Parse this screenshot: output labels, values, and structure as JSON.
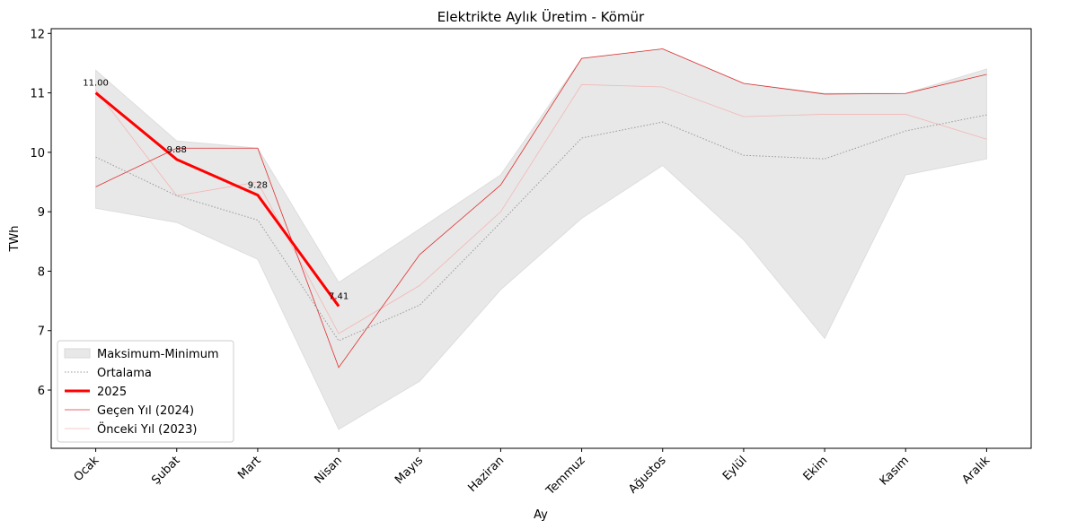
{
  "chart_data": {
    "type": "line",
    "title": "Elektrikte Aylık Üretim - Kömür",
    "xlabel": "Ay",
    "ylabel": "TWh",
    "categories": [
      "Ocak",
      "Şubat",
      "Mart",
      "Nisan",
      "Mayıs",
      "Haziran",
      "Temmuz",
      "Ağustos",
      "Eylül",
      "Ekim",
      "Kasım",
      "Aralık"
    ],
    "band": {
      "name": "Maksimum-Minimum",
      "color": "#e8e8e8",
      "upper": [
        11.38,
        10.19,
        10.07,
        7.81,
        8.71,
        9.62,
        11.58,
        11.74,
        11.16,
        10.99,
        10.99,
        11.4
      ],
      "lower": [
        9.06,
        8.82,
        8.2,
        5.34,
        6.15,
        7.69,
        8.89,
        9.78,
        8.53,
        6.87,
        9.62,
        9.89
      ]
    },
    "series": [
      {
        "name": "Ortalama",
        "color": "#999999",
        "width": 1,
        "dash": "1.5 2",
        "values": [
          9.92,
          9.27,
          8.86,
          6.83,
          7.43,
          8.82,
          10.24,
          10.51,
          9.95,
          9.89,
          10.36,
          10.63
        ]
      },
      {
        "name": "2025",
        "color": "#ff0000",
        "width": 3,
        "values": [
          11.0,
          9.88,
          9.28,
          7.41,
          null,
          null,
          null,
          null,
          null,
          null,
          null,
          null
        ],
        "value_labels": [
          "11.00",
          "9.88",
          "9.28",
          "7.41",
          null,
          null,
          null,
          null,
          null,
          null,
          null,
          null
        ]
      },
      {
        "name": "Geçen Yıl (2024)",
        "color": "#e03030",
        "width": 0.8,
        "values": [
          9.42,
          10.07,
          10.07,
          6.38,
          8.28,
          9.45,
          11.58,
          11.74,
          11.16,
          10.98,
          10.99,
          11.31
        ]
      },
      {
        "name": "Önceki Yıl (2023)",
        "color": "#f4b6b6",
        "width": 0.8,
        "values": [
          11.05,
          9.27,
          9.5,
          6.95,
          7.76,
          9.0,
          11.14,
          11.1,
          10.6,
          10.64,
          10.64,
          10.22
        ]
      }
    ],
    "ylim": [
      5.02,
      12.08
    ],
    "yticks": [
      6,
      7,
      8,
      9,
      10,
      11,
      12
    ],
    "legend": "lower left"
  }
}
